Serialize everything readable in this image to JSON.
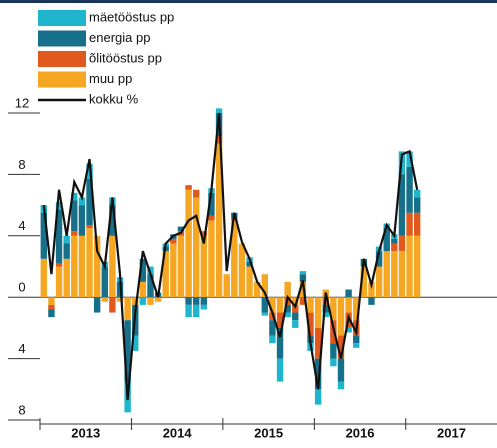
{
  "chart_data": {
    "type": "bar",
    "stacked": true,
    "year_labels": [
      "2013",
      "2014",
      "2015",
      "2016",
      "2017"
    ],
    "ylim": [
      -8,
      12
    ],
    "yticks": [
      12,
      8,
      4,
      0,
      {
        "value": -4,
        "label": "4"
      },
      {
        "value": -8,
        "label": "8"
      }
    ],
    "series": [
      {
        "name": "mäetööstus pp",
        "color": "#1fb5cc",
        "values": [
          0.5,
          0,
          0.5,
          0.5,
          0.5,
          0.5,
          1,
          0,
          0.3,
          0.5,
          0.3,
          -2,
          -1,
          -0.5,
          0.5,
          0,
          0.2,
          0,
          0,
          -0.8,
          -0.8,
          -0.3,
          0.3,
          0.3,
          0,
          0,
          0,
          0.3,
          0,
          -0.2,
          -0.5,
          -1.5,
          -0.3,
          -0.5,
          0.2,
          -0.5,
          -1,
          -0.3,
          -0.5,
          -0.5,
          -0.3,
          -0.3,
          0,
          0,
          0.3,
          0.3,
          0.3,
          1.5,
          1,
          0.5
        ]
      },
      {
        "name": "energia pp",
        "color": "#17708a",
        "values": [
          3,
          -0.5,
          3.5,
          1,
          2,
          2,
          3,
          -1,
          2,
          2,
          1,
          -4,
          -2,
          1.5,
          1.5,
          0.3,
          0.3,
          0.3,
          0.3,
          -0.5,
          -0.5,
          -0.5,
          1.5,
          1.5,
          0,
          0.3,
          0,
          0.3,
          0,
          -1,
          -1,
          -2,
          -0.5,
          -0.5,
          0.5,
          -0.5,
          -2,
          -0.5,
          -1,
          -1.5,
          0.5,
          -0.5,
          0.5,
          -0.5,
          1,
          1.5,
          0.3,
          4,
          3,
          1
        ]
      },
      {
        "name": "õlitööstus pp",
        "color": "#e05a1e",
        "values": [
          0,
          -0.3,
          0.2,
          0,
          0.3,
          0,
          0.2,
          0,
          0,
          -1,
          0,
          0,
          0,
          0,
          0,
          0,
          0,
          0.3,
          0.3,
          0.3,
          0.5,
          0.3,
          0.3,
          0.5,
          0,
          0.2,
          0,
          0,
          0,
          0,
          -0.5,
          -1,
          -0.5,
          -0.5,
          -0.5,
          -1.5,
          -2,
          -0.5,
          -1.5,
          -1.5,
          -1,
          -1,
          0,
          0,
          0,
          0,
          0.5,
          1,
          1.5,
          1.5
        ]
      },
      {
        "name": "muu pp",
        "color": "#f5a623",
        "values": [
          2.5,
          -0.5,
          2,
          2.5,
          4,
          4,
          4.5,
          4,
          -0.3,
          4,
          -0.3,
          -1.5,
          -0.5,
          1,
          -0.5,
          -0.3,
          3,
          3.5,
          4,
          7,
          6.5,
          4,
          5,
          10,
          1.5,
          5,
          3.5,
          2,
          1,
          1.5,
          -1,
          -1,
          1,
          -0.5,
          1,
          -1,
          -2,
          0.5,
          -1.5,
          -2.5,
          -1,
          -1.5,
          2,
          1,
          2,
          3,
          3,
          3,
          4,
          4
        ]
      },
      {
        "name": "kokku %",
        "type": "line",
        "color": "#111111",
        "values": [
          6,
          1.5,
          7,
          4,
          7.5,
          6.5,
          9,
          3,
          2,
          6.5,
          1.5,
          -6.7,
          -1,
          3,
          1.5,
          0,
          3.5,
          4,
          4.2,
          5,
          5.3,
          3.5,
          7,
          12,
          1.7,
          5.5,
          3.6,
          2.5,
          1,
          0.3,
          -1,
          -2.6,
          0,
          -0.6,
          1.1,
          -3,
          -6,
          0.3,
          -2,
          -4,
          -1.3,
          -2.3,
          2.5,
          0.8,
          3,
          4.7,
          4,
          9.3,
          9.5,
          7
        ]
      }
    ]
  }
}
